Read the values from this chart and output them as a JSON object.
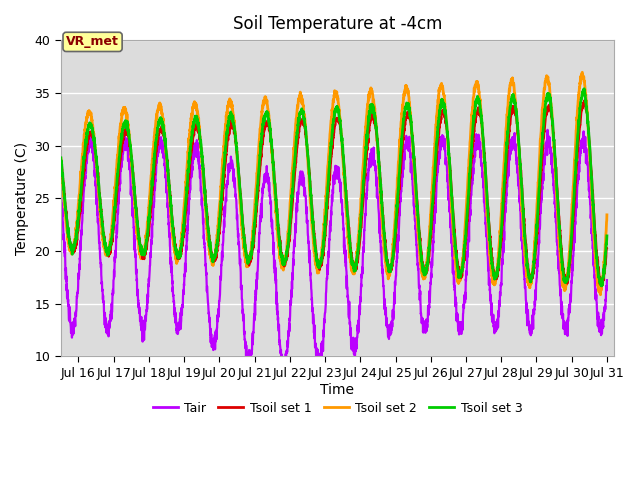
{
  "title": "Soil Temperature at -4cm",
  "xlabel": "Time",
  "ylabel": "Temperature (C)",
  "ylim": [
    10,
    40
  ],
  "xlim_days": [
    15.5,
    31.2
  ],
  "bg_color": "#dcdcdc",
  "fig_color": "#ffffff",
  "line_colors": {
    "Tair": "#bb00ff",
    "Tsoil set 1": "#dd0000",
    "Tsoil set 2": "#ff9900",
    "Tsoil set 3": "#00cc00"
  },
  "line_widths": {
    "Tair": 1.6,
    "Tsoil set 1": 1.6,
    "Tsoil set 2": 2.0,
    "Tsoil set 3": 2.0
  },
  "annotation_text": "VR_met",
  "annotation_color": "#8b0000",
  "annotation_bg": "#ffff99",
  "tick_labels": [
    "Jul 16",
    "Jul 17",
    "Jul 18",
    "Jul 19",
    "Jul 20",
    "Jul 21",
    "Jul 22",
    "Jul 23",
    "Jul 24",
    "Jul 25",
    "Jul 26",
    "Jul 27",
    "Jul 28",
    "Jul 29",
    "Jul 30",
    "Jul 31"
  ],
  "tick_positions": [
    16,
    17,
    18,
    19,
    20,
    21,
    22,
    23,
    24,
    25,
    26,
    27,
    28,
    29,
    30,
    31
  ],
  "yticks": [
    10,
    15,
    20,
    25,
    30,
    35,
    40
  ],
  "legend_labels": [
    "Tair",
    "Tsoil set 1",
    "Tsoil set 2",
    "Tsoil set 3"
  ]
}
